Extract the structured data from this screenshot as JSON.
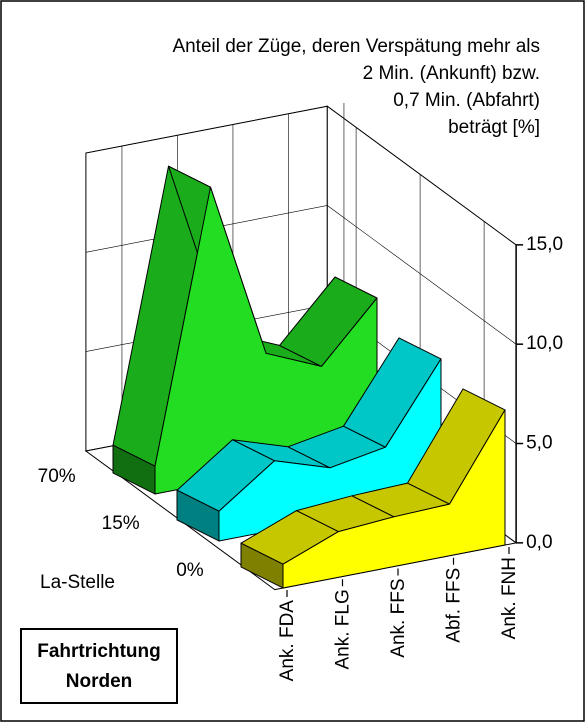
{
  "chart_data": {
    "type": "ribbon3d",
    "title": [
      "Anteil der Züge, deren Verspätung mehr als",
      "2 Min. (Ankunft) bzw.",
      "0,7 Min. (Abfahrt)",
      "beträgt [%]"
    ],
    "categories": [
      "Ank. FDA",
      "Ank. FLG",
      "Ank. FFS",
      "Abf. FFS",
      "Ank. FNH"
    ],
    "series": [
      {
        "name": "70%",
        "color": "#22dd22",
        "values": [
          1.4,
          14.9,
          6.0,
          4.8,
          7.7
        ]
      },
      {
        "name": "15%",
        "color": "#00ffff",
        "values": [
          1.5,
          3.5,
          2.6,
          3.1,
          7.0
        ]
      },
      {
        "name": "0%",
        "color": "#ffff00",
        "values": [
          1.2,
          2.3,
          2.5,
          2.6,
          6.8
        ]
      }
    ],
    "depth_label": "La-Stelle",
    "ylim": [
      0,
      15
    ],
    "yticks": [
      {
        "value": 0,
        "label": "0,0"
      },
      {
        "value": 5,
        "label": "5,0"
      },
      {
        "value": 10,
        "label": "10,0"
      },
      {
        "value": 15,
        "label": "15,0"
      }
    ],
    "grid": true,
    "annotation": [
      "Fahrtrichtung",
      "Norden"
    ]
  }
}
